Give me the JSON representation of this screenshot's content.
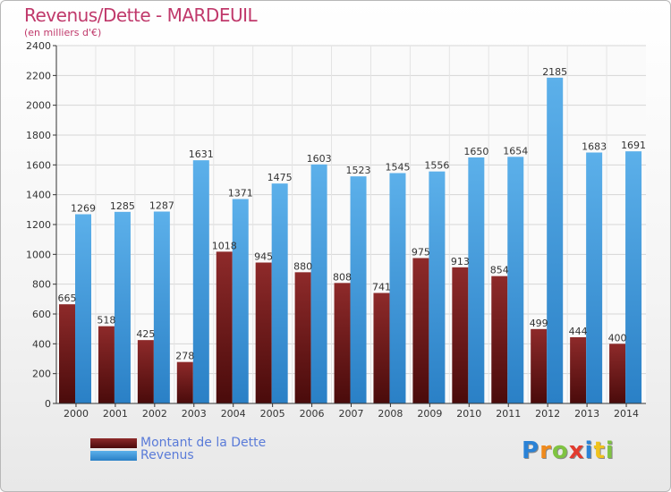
{
  "title": "Revenus/Dette - MARDEUIL",
  "subtitle": "(en milliers d'€)",
  "chart_data": {
    "type": "bar",
    "categories": [
      "2000",
      "2001",
      "2002",
      "2003",
      "2004",
      "2005",
      "2006",
      "2007",
      "2008",
      "2009",
      "2010",
      "2011",
      "2012",
      "2013",
      "2014"
    ],
    "series": [
      {
        "name": "Montant de la Dette",
        "color": "#7a1f1f",
        "values": [
          665,
          518,
          425,
          278,
          1018,
          945,
          880,
          808,
          741,
          975,
          913,
          854,
          499,
          444,
          400
        ]
      },
      {
        "name": "Revenus",
        "color": "#4ba2e0",
        "values": [
          1269,
          1285,
          1287,
          1631,
          1371,
          1475,
          1603,
          1523,
          1545,
          1556,
          1650,
          1654,
          2185,
          1683,
          1691
        ]
      }
    ],
    "ylim": [
      0,
      2400
    ],
    "yticks": [
      0,
      200,
      400,
      600,
      800,
      1000,
      1200,
      1400,
      1600,
      1800,
      2000,
      2200,
      2400
    ],
    "grid": true,
    "legend_position": "bottom-left"
  },
  "legend": {
    "debt_label": "Montant de la Dette",
    "revenue_label": "Revenus"
  },
  "logo": {
    "letters": [
      "P",
      "r",
      "o",
      "x",
      "i",
      "t",
      "i"
    ],
    "colors": [
      "#2a82d6",
      "#f08a1c",
      "#7fc342",
      "#e23b2e",
      "#2a82d6",
      "#f0c21c",
      "#7fc342"
    ]
  }
}
